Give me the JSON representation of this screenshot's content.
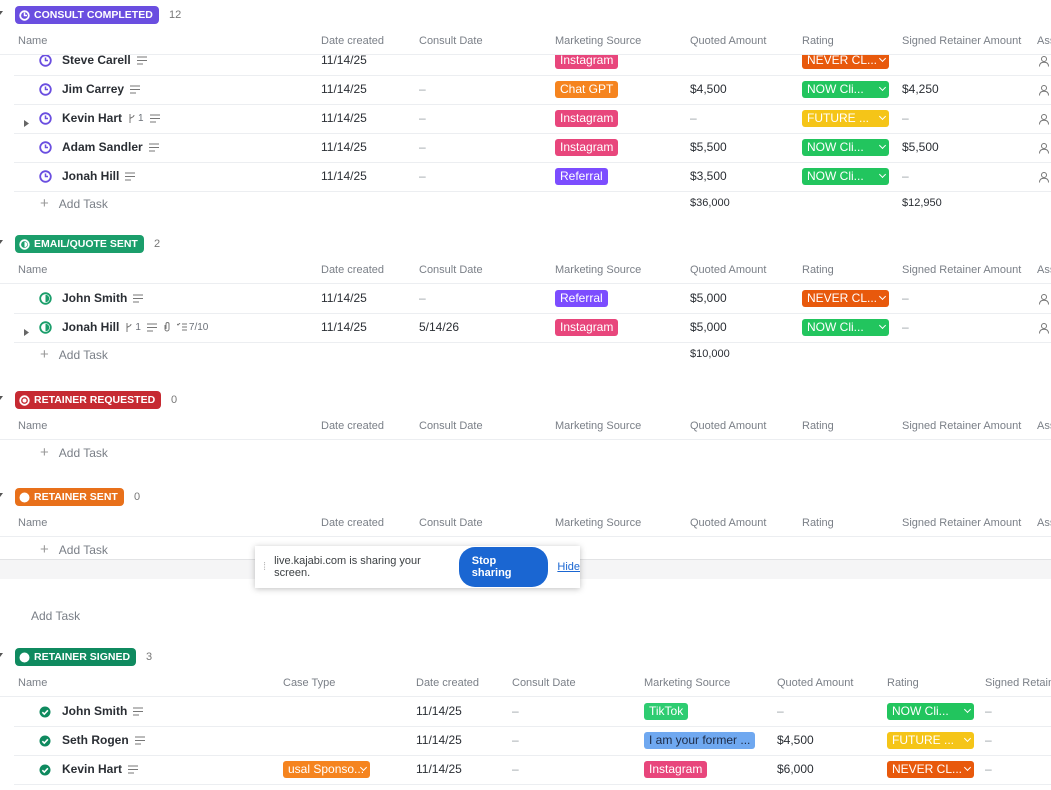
{
  "groups": [
    {
      "status": "CONSULT COMPLETED",
      "count": 12,
      "color": "#6a4ee0",
      "columns": [
        "Name",
        "Date created",
        "Consult Date",
        "Marketing Source",
        "Quoted Amount",
        "Rating",
        "Signed Retainer Amount",
        "Ass"
      ],
      "rows": [
        {
          "name": "Steve Carell",
          "cells": [
            "11/14/25",
            null,
            {
              "text": "Instagram",
              "color": "#e8467c"
            },
            null,
            {
              "text": "NEVER CL...",
              "color": "#e8590c",
              "dropdown": true
            },
            null
          ]
        },
        {
          "name": "Jim Carrey",
          "cells": [
            "11/14/25",
            "–",
            {
              "text": "Chat GPT",
              "color": "#f5841f"
            },
            "$4,500",
            {
              "text": "NOW Cli...",
              "color": "#22c55e",
              "dropdown": true
            },
            "$4,250"
          ]
        },
        {
          "name": "Kevin Hart",
          "subtasks": "1",
          "cells": [
            "11/14/25",
            "–",
            {
              "text": "Instagram",
              "color": "#e8467c"
            },
            "–",
            {
              "text": "FUTURE ...",
              "color": "#f5c518",
              "dropdown": true
            },
            "–"
          ]
        },
        {
          "name": "Adam Sandler",
          "cells": [
            "11/14/25",
            "–",
            {
              "text": "Instagram",
              "color": "#e8467c"
            },
            "$5,500",
            {
              "text": "NOW Cli...",
              "color": "#22c55e",
              "dropdown": true
            },
            "$5,500"
          ]
        },
        {
          "name": "Jonah Hill",
          "cells": [
            "11/14/25",
            "–",
            {
              "text": "Referral",
              "color": "#7c4dff"
            },
            "$3,500",
            {
              "text": "NOW Cli...",
              "color": "#22c55e",
              "dropdown": true
            },
            "–"
          ]
        }
      ],
      "add_task": "Add Task",
      "totals": [
        null,
        null,
        null,
        null,
        "$36,000",
        null,
        "$12,950",
        null
      ]
    },
    {
      "status": "EMAIL/QUOTE SENT",
      "count": 2,
      "color": "#1b9e6b",
      "columns": [
        "Name",
        "Date created",
        "Consult Date",
        "Marketing Source",
        "Quoted Amount",
        "Rating",
        "Signed Retainer Amount",
        "Ass"
      ],
      "rows": [
        {
          "name": "John Smith",
          "cells": [
            "11/14/25",
            "–",
            {
              "text": "Referral",
              "color": "#7c4dff"
            },
            "$5,000",
            {
              "text": "NEVER CL...",
              "color": "#e8590c",
              "dropdown": true
            },
            "–"
          ]
        },
        {
          "name": "Jonah Hill",
          "subtasks": "1",
          "checklist": "7/10",
          "cells": [
            "11/14/25",
            "5/14/26",
            {
              "text": "Instagram",
              "color": "#e8467c"
            },
            "$5,000",
            {
              "text": "NOW Cli...",
              "color": "#22c55e",
              "dropdown": true
            },
            "–"
          ]
        }
      ],
      "add_task": "Add Task",
      "totals": [
        null,
        null,
        null,
        null,
        "$10,000",
        null,
        null,
        null
      ]
    },
    {
      "status": "RETAINER REQUESTED",
      "count": 0,
      "color": "#c62a32",
      "columns": [
        "Name",
        "Date created",
        "Consult Date",
        "Marketing Source",
        "Quoted Amount",
        "Rating",
        "Signed Retainer Amount",
        "Ass"
      ],
      "rows": [],
      "add_task": "Add Task"
    },
    {
      "status": "RETAINER SENT",
      "count": 0,
      "color": "#e8701a",
      "columns": [
        "Name",
        "Date created",
        "Consult Date",
        "Marketing Source",
        "Quoted Amount",
        "Rating",
        "Signed Retainer Amount",
        "Ass"
      ],
      "rows": [],
      "add_task": "Add Task"
    },
    {
      "status": "RETAINER SIGNED",
      "count": 3,
      "color": "#0f8a5f",
      "columns": [
        "Name",
        "Case Type",
        "Date created",
        "Consult Date",
        "Marketing Source",
        "Quoted Amount",
        "Rating",
        "Signed Retaine"
      ],
      "rows": [
        {
          "name": "John Smith",
          "cells": [
            null,
            "11/14/25",
            "–",
            {
              "text": "TikTok",
              "color": "#2ecc71"
            },
            "–",
            {
              "text": "NOW Cli...",
              "color": "#22c55e",
              "dropdown": true
            },
            "–"
          ]
        },
        {
          "name": "Seth Rogen",
          "cells": [
            null,
            "11/14/25",
            "–",
            {
              "text": "I am your former ...",
              "color": "#6fa8f0",
              "dark": true
            },
            "$4,500",
            {
              "text": "FUTURE ...",
              "color": "#f5c518",
              "dropdown": true
            },
            "–"
          ]
        },
        {
          "name": "Kevin Hart",
          "cells": [
            {
              "text": "usal Sponso...",
              "color": "#f5841f",
              "dropdown": true
            },
            "11/14/25",
            "–",
            {
              "text": "Instagram",
              "color": "#e8467c"
            },
            "$6,000",
            {
              "text": "NEVER CL...",
              "color": "#e8590c",
              "dropdown": true
            },
            "–"
          ]
        }
      ]
    }
  ],
  "standalone_add_task": "Add Task",
  "share_bar": {
    "message": "live.kajabi.com is sharing your screen.",
    "stop_button": "Stop sharing",
    "hide_link": "Hide"
  }
}
